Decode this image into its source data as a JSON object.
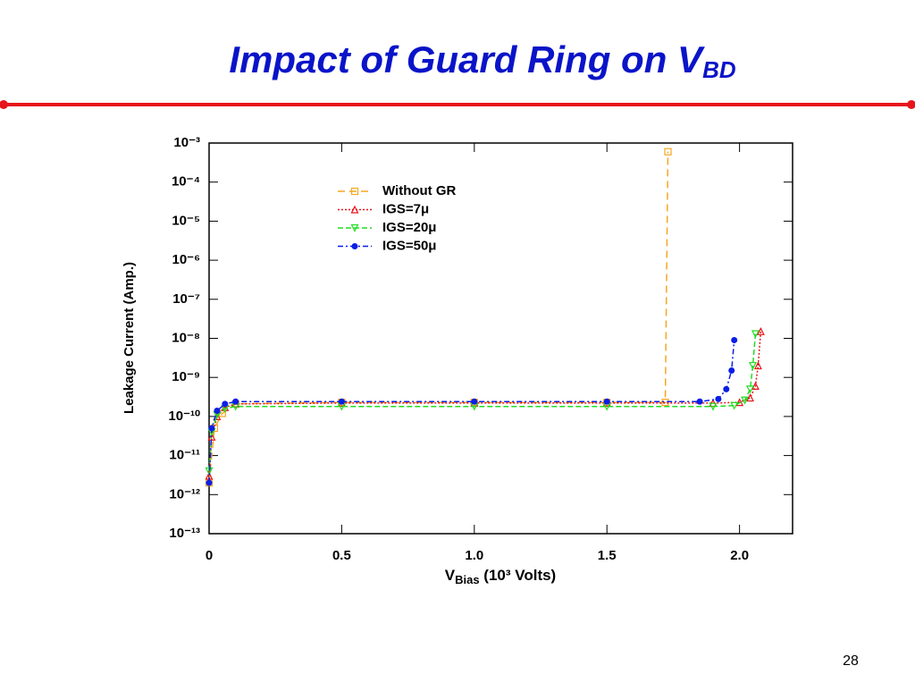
{
  "title": {
    "text": "Impact of Guard Ring on V",
    "sub": "BD"
  },
  "page_number": "28",
  "chart_data": {
    "type": "line",
    "x_label": {
      "text": "V",
      "sub": "Bias",
      "rest": " (10³ Volts)"
    },
    "y_label": "Leakage Current (Amp.)",
    "log_y": true,
    "xlim": [
      0,
      2.2
    ],
    "xticks": [
      0,
      0.5,
      {
        "value": 1,
        "label": "1.0"
      },
      1.5,
      {
        "value": 2,
        "label": "2.0"
      }
    ],
    "ylim": [
      1e-13,
      0.001
    ],
    "yticks": [
      {
        "value": 1e-13,
        "label": "10⁻¹³"
      },
      {
        "value": 1e-12,
        "label": "10⁻¹²"
      },
      {
        "value": 1e-11,
        "label": "10⁻¹¹"
      },
      {
        "value": 1e-10,
        "label": "10⁻¹⁰"
      },
      {
        "value": 1e-09,
        "label": "10⁻⁹"
      },
      {
        "value": 1e-08,
        "label": "10⁻⁸"
      },
      {
        "value": 1e-07,
        "label": "10⁻⁷"
      },
      {
        "value": 1e-06,
        "label": "10⁻⁶"
      },
      {
        "value": 1e-05,
        "label": "10⁻⁵"
      },
      {
        "value": 0.0001,
        "label": "10⁻⁴"
      },
      {
        "value": 0.001,
        "label": "10⁻³"
      }
    ],
    "series": [
      {
        "name": "Without GR",
        "color": "#f5a623",
        "marker": "square",
        "dash": "8,5",
        "x": [
          0,
          0.02,
          0.05,
          0.1,
          0.5,
          1.0,
          1.5,
          1.72,
          1.73
        ],
        "values": [
          2e-12,
          5e-11,
          1.2e-10,
          2.1e-10,
          2.3e-10,
          2.3e-10,
          2.3e-10,
          2.3e-10,
          0.0006
        ]
      },
      {
        "name": "IGS=7μ",
        "color": "#e8141c",
        "marker": "triangle",
        "dash": "2,2",
        "x": [
          0,
          0.01,
          0.03,
          0.06,
          0.1,
          0.5,
          1.0,
          1.5,
          1.9,
          2.0,
          2.04,
          2.06,
          2.07,
          2.08
        ],
        "values": [
          3e-12,
          3e-11,
          1e-10,
          1.7e-10,
          2.1e-10,
          2.2e-10,
          2.2e-10,
          2.2e-10,
          2.2e-10,
          2.3e-10,
          3e-10,
          6e-10,
          2e-09,
          1.5e-08
        ]
      },
      {
        "name": "IGS=20μ",
        "color": "#22dd22",
        "marker": "triangle-down",
        "dash": "6,3",
        "x": [
          0,
          0.01,
          0.03,
          0.06,
          0.1,
          0.5,
          1.0,
          1.5,
          1.9,
          1.98,
          2.02,
          2.04,
          2.05,
          2.06
        ],
        "values": [
          4e-12,
          4e-11,
          1.1e-10,
          1.6e-10,
          1.8e-10,
          1.8e-10,
          1.8e-10,
          1.8e-10,
          1.8e-10,
          1.9e-10,
          2.6e-10,
          5e-10,
          2e-09,
          1.3e-08
        ]
      },
      {
        "name": "IGS=50μ",
        "color": "#0a1ee6",
        "marker": "circle",
        "dash": "6,3,2,3",
        "x": [
          0,
          0.01,
          0.03,
          0.06,
          0.1,
          0.5,
          1.0,
          1.5,
          1.85,
          1.92,
          1.95,
          1.97,
          1.98
        ],
        "values": [
          2e-12,
          5e-11,
          1.4e-10,
          2.1e-10,
          2.4e-10,
          2.4e-10,
          2.4e-10,
          2.4e-10,
          2.4e-10,
          2.8e-10,
          5e-10,
          1.5e-09,
          9e-09
        ]
      }
    ]
  }
}
